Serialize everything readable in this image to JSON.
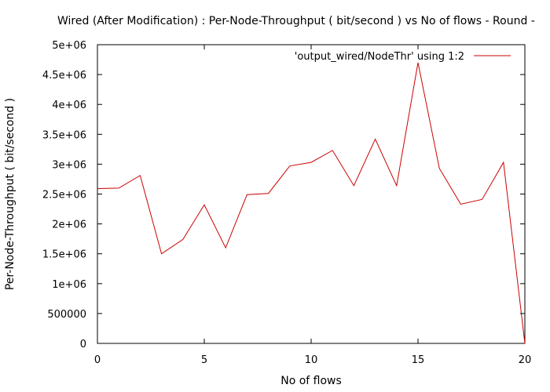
{
  "chart_data": {
    "type": "line",
    "title": "Wired (After Modification) : Per-Node-Throughput ( bit/second ) vs No of flows - Round -",
    "xlabel": "No of flows",
    "ylabel": "Per-Node-Throughput ( bit/second )",
    "xlim": [
      0,
      20
    ],
    "ylim": [
      0,
      5000000
    ],
    "x_ticks": [
      {
        "value": 0,
        "label": "0"
      },
      {
        "value": 5,
        "label": "5"
      },
      {
        "value": 10,
        "label": "10"
      },
      {
        "value": 15,
        "label": "15"
      },
      {
        "value": 20,
        "label": "20"
      }
    ],
    "y_ticks": [
      {
        "value": 0,
        "label": "0"
      },
      {
        "value": 500000,
        "label": "500000"
      },
      {
        "value": 1000000,
        "label": "1e+06"
      },
      {
        "value": 1500000,
        "label": "1.5e+06"
      },
      {
        "value": 2000000,
        "label": "2e+06"
      },
      {
        "value": 2500000,
        "label": "2.5e+06"
      },
      {
        "value": 3000000,
        "label": "3e+06"
      },
      {
        "value": 3500000,
        "label": "3.5e+06"
      },
      {
        "value": 4000000,
        "label": "4e+06"
      },
      {
        "value": 4500000,
        "label": "4.5e+06"
      },
      {
        "value": 5000000,
        "label": "5e+06"
      }
    ],
    "grid": false,
    "legend_position": "top-right",
    "series": [
      {
        "name": "'output_wired/NodeThr' using 1:2",
        "color": "#cc0000",
        "x": [
          0,
          1,
          2,
          3,
          4,
          5,
          6,
          7,
          8,
          9,
          10,
          11,
          12,
          13,
          14,
          15,
          16,
          17,
          18,
          19,
          20
        ],
        "y": [
          2590000,
          2600000,
          2810000,
          1500000,
          1740000,
          2320000,
          1600000,
          2490000,
          2510000,
          2970000,
          3030000,
          3230000,
          2640000,
          3420000,
          2640000,
          4700000,
          2930000,
          2330000,
          2410000,
          3030000,
          0
        ]
      }
    ]
  }
}
